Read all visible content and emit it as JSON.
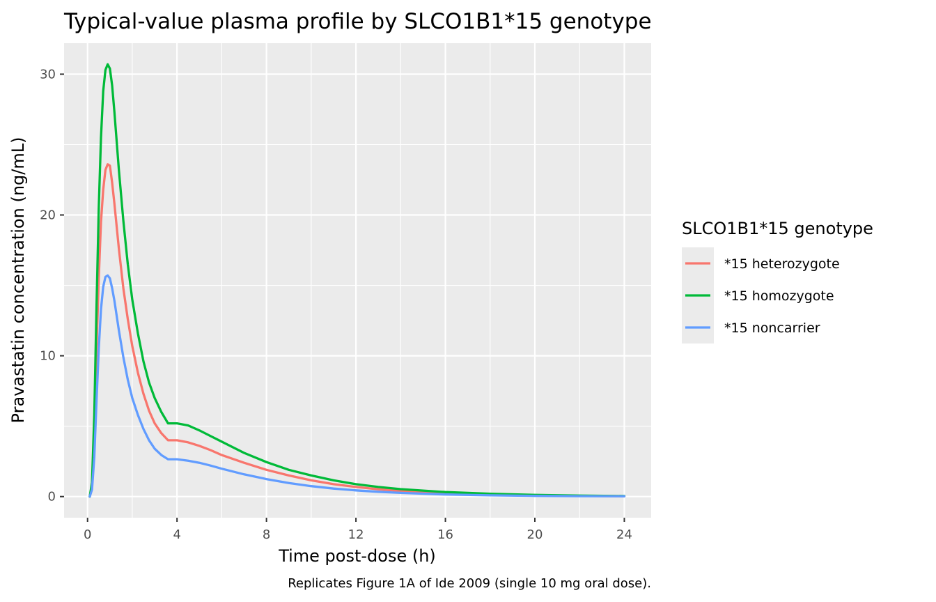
{
  "chart_data": {
    "type": "line",
    "title": "Typical-value plasma profile by SLCO1B1*15 genotype",
    "xlabel": "Time post-dose (h)",
    "ylabel": "Pravastatin concentration (ng/mL)",
    "caption": "Replicates Figure 1A of Ide 2009 (single 10 mg oral dose).",
    "xlim": [
      -1.05,
      25.2
    ],
    "ylim": [
      -1.5,
      32.2
    ],
    "x_ticks": [
      0,
      4,
      8,
      12,
      16,
      20,
      24
    ],
    "x_tick_labels": [
      "0",
      "4",
      "8",
      "12",
      "16",
      "20",
      "24"
    ],
    "y_ticks": [
      0,
      10,
      20,
      30
    ],
    "y_tick_labels": [
      "0",
      "10",
      "20",
      "30"
    ],
    "grid": true,
    "legend": {
      "title": "SLCO1B1*15 genotype",
      "position": "right"
    },
    "series": [
      {
        "name": "*15 heterozygote",
        "color": "#F8766D",
        "x": [
          0.1,
          0.2,
          0.3,
          0.4,
          0.5,
          0.6,
          0.7,
          0.8,
          0.9,
          1.0,
          1.1,
          1.2,
          1.4,
          1.6,
          1.8,
          2.0,
          2.25,
          2.5,
          2.75,
          3.0,
          3.3,
          3.6,
          3.8,
          4.0,
          4.5,
          5.0,
          5.5,
          6.0,
          7.0,
          8.0,
          9.0,
          10.0,
          11.0,
          12.0,
          13.0,
          14.0,
          16.0,
          18.0,
          20.0,
          22.0,
          24.0
        ],
        "y": [
          0,
          0.8,
          4.5,
          10.5,
          15.5,
          19.5,
          21.8,
          23.2,
          23.6,
          23.5,
          22.3,
          20.8,
          17.6,
          14.8,
          12.6,
          10.7,
          8.8,
          7.3,
          6.1,
          5.2,
          4.5,
          4.0,
          4.0,
          4.0,
          3.85,
          3.6,
          3.3,
          2.95,
          2.4,
          1.9,
          1.5,
          1.15,
          0.88,
          0.68,
          0.52,
          0.4,
          0.24,
          0.15,
          0.09,
          0.05,
          0.03
        ]
      },
      {
        "name": "*15 homozygote",
        "color": "#00BA38",
        "x": [
          0.1,
          0.2,
          0.3,
          0.4,
          0.5,
          0.6,
          0.7,
          0.8,
          0.9,
          1.0,
          1.1,
          1.2,
          1.4,
          1.6,
          1.8,
          2.0,
          2.25,
          2.5,
          2.75,
          3.0,
          3.3,
          3.6,
          3.8,
          4.0,
          4.5,
          5.0,
          5.5,
          6.0,
          7.0,
          8.0,
          9.0,
          10.0,
          11.0,
          12.0,
          13.0,
          14.0,
          16.0,
          18.0,
          20.0,
          22.0,
          24.0
        ],
        "y": [
          0,
          1.0,
          5.8,
          13.5,
          20.5,
          25.5,
          28.8,
          30.3,
          30.7,
          30.4,
          29.2,
          27.3,
          23.2,
          19.6,
          16.5,
          14.0,
          11.6,
          9.6,
          8.1,
          7.0,
          6.0,
          5.2,
          5.2,
          5.2,
          5.05,
          4.7,
          4.3,
          3.9,
          3.1,
          2.45,
          1.9,
          1.5,
          1.15,
          0.88,
          0.68,
          0.53,
          0.32,
          0.2,
          0.12,
          0.07,
          0.04
        ]
      },
      {
        "name": "*15 noncarrier",
        "color": "#619CFF",
        "x": [
          0.1,
          0.2,
          0.3,
          0.4,
          0.5,
          0.6,
          0.7,
          0.8,
          0.9,
          1.0,
          1.1,
          1.2,
          1.4,
          1.6,
          1.8,
          2.0,
          2.25,
          2.5,
          2.75,
          3.0,
          3.3,
          3.6,
          3.8,
          4.0,
          4.5,
          5.0,
          5.5,
          6.0,
          7.0,
          8.0,
          9.0,
          10.0,
          11.0,
          12.0,
          13.0,
          14.0,
          16.0,
          18.0,
          20.0,
          22.0,
          24.0
        ],
        "y": [
          0,
          0.5,
          2.8,
          6.8,
          10.5,
          13.3,
          14.9,
          15.6,
          15.7,
          15.5,
          14.8,
          13.9,
          11.8,
          9.9,
          8.3,
          7.0,
          5.8,
          4.8,
          4.0,
          3.4,
          2.95,
          2.65,
          2.65,
          2.65,
          2.55,
          2.4,
          2.2,
          1.98,
          1.58,
          1.24,
          0.96,
          0.74,
          0.57,
          0.44,
          0.34,
          0.26,
          0.15,
          0.09,
          0.05,
          0.03,
          0.02
        ]
      }
    ]
  }
}
